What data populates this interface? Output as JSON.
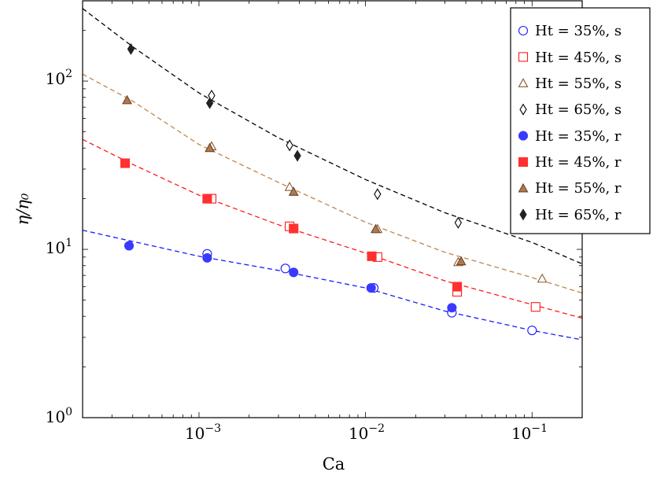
{
  "chart_data": {
    "type": "scatter",
    "xscale": "log",
    "yscale": "log",
    "xlim": [
      0.0002,
      0.2
    ],
    "ylim": [
      1,
      300
    ],
    "xlabel": "Ca",
    "ylabel": "η/η₀",
    "grid": false,
    "legend_position": "top-right",
    "x_ticks": [
      {
        "value": 0.001,
        "base": "10",
        "exp": "−3"
      },
      {
        "value": 0.01,
        "base": "10",
        "exp": "−2"
      },
      {
        "value": 0.1,
        "base": "10",
        "exp": "−1"
      }
    ],
    "y_ticks": [
      {
        "value": 1,
        "base": "10",
        "exp": "0"
      },
      {
        "value": 10,
        "base": "10",
        "exp": "1"
      },
      {
        "value": 100,
        "base": "10",
        "exp": "2"
      }
    ],
    "fit_curves": [
      {
        "color": "#1a1aff",
        "points": [
          [
            0.0002,
            13
          ],
          [
            0.001,
            9.1
          ],
          [
            0.003,
            7.5
          ],
          [
            0.01,
            5.9
          ],
          [
            0.03,
            4.3
          ],
          [
            0.1,
            3.3
          ],
          [
            0.2,
            2.9
          ]
        ]
      },
      {
        "color": "#ff1a1a",
        "points": [
          [
            0.0002,
            45
          ],
          [
            0.0004,
            32
          ],
          [
            0.001,
            21
          ],
          [
            0.003,
            14
          ],
          [
            0.01,
            9.5
          ],
          [
            0.03,
            6.5
          ],
          [
            0.1,
            4.7
          ],
          [
            0.2,
            3.9
          ]
        ]
      },
      {
        "color": "#c0854a",
        "points": [
          [
            0.0002,
            110
          ],
          [
            0.0004,
            76
          ],
          [
            0.001,
            42
          ],
          [
            0.003,
            25
          ],
          [
            0.01,
            14.5
          ],
          [
            0.03,
            9.6
          ],
          [
            0.1,
            6.8
          ],
          [
            0.2,
            5.5
          ]
        ]
      },
      {
        "color": "#000000",
        "points": [
          [
            0.0002,
            270
          ],
          [
            0.0004,
            160
          ],
          [
            0.001,
            85
          ],
          [
            0.003,
            46
          ],
          [
            0.01,
            26
          ],
          [
            0.03,
            16.5
          ],
          [
            0.1,
            11
          ],
          [
            0.2,
            8.2
          ]
        ]
      }
    ],
    "series": [
      {
        "name": "Ht = 35%, s",
        "marker": "circle",
        "filled": false,
        "color": "#1a1aff",
        "points": [
          [
            0.00112,
            9.4
          ],
          [
            0.0033,
            7.7
          ],
          [
            0.0112,
            5.9
          ],
          [
            0.033,
            4.2
          ],
          [
            0.1,
            3.3
          ]
        ]
      },
      {
        "name": "Ht = 45%, s",
        "marker": "square",
        "filled": false,
        "color": "#ff1a1a",
        "points": [
          [
            0.00119,
            20
          ],
          [
            0.0035,
            13.7
          ],
          [
            0.0118,
            9
          ],
          [
            0.0355,
            5.6
          ],
          [
            0.105,
            4.55
          ]
        ]
      },
      {
        "name": "Ht = 55%, s",
        "marker": "triangle",
        "filled": false,
        "color": "#8b5a2b",
        "points": [
          [
            0.00119,
            41
          ],
          [
            0.0035,
            23.5
          ],
          [
            0.0118,
            13.2
          ],
          [
            0.036,
            8.4
          ],
          [
            0.115,
            6.7
          ]
        ]
      },
      {
        "name": "Ht = 65%, s",
        "marker": "diamond",
        "filled": false,
        "color": "#000000",
        "points": [
          [
            0.00119,
            82
          ],
          [
            0.0035,
            41.5
          ],
          [
            0.0118,
            21.3
          ],
          [
            0.036,
            14.4
          ]
        ]
      },
      {
        "name": "Ht = 35%, r",
        "marker": "circle",
        "filled": true,
        "color": "#3a3aff",
        "points": [
          [
            0.00038,
            10.5
          ],
          [
            0.00112,
            8.9
          ],
          [
            0.0037,
            7.3
          ],
          [
            0.0108,
            5.9
          ],
          [
            0.033,
            4.5
          ]
        ]
      },
      {
        "name": "Ht = 45%, r",
        "marker": "square",
        "filled": true,
        "color": "#ff3030",
        "points": [
          [
            0.00036,
            32.5
          ],
          [
            0.00112,
            20
          ],
          [
            0.0037,
            13.3
          ],
          [
            0.0109,
            9.1
          ],
          [
            0.0355,
            6
          ]
        ]
      },
      {
        "name": "Ht = 55%, r",
        "marker": "triangle",
        "filled": true,
        "color": "#b07a50",
        "points": [
          [
            0.00037,
            77
          ],
          [
            0.00116,
            40
          ],
          [
            0.0037,
            22
          ],
          [
            0.0115,
            13.2
          ],
          [
            0.0375,
            8.5
          ]
        ]
      },
      {
        "name": "Ht = 65%, r",
        "marker": "diamond",
        "filled": true,
        "color": "#222222",
        "points": [
          [
            0.00039,
            155
          ],
          [
            0.00116,
            74
          ],
          [
            0.0039,
            36
          ]
        ]
      }
    ]
  }
}
